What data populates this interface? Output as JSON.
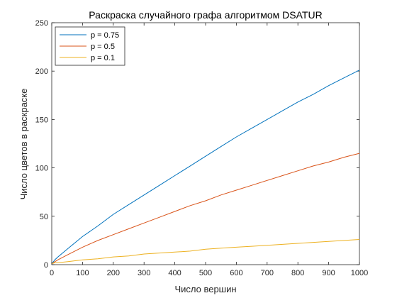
{
  "chart_data": {
    "type": "line",
    "title": "Раскраска случайного графа алгоритмом DSATUR",
    "xlabel": "Число вершин",
    "ylabel": "Число цветов в раскраске",
    "xlim": [
      0,
      1000
    ],
    "ylim": [
      0,
      250
    ],
    "xticks": [
      0,
      100,
      200,
      300,
      400,
      500,
      600,
      700,
      800,
      900,
      1000
    ],
    "yticks": [
      0,
      50,
      100,
      150,
      200,
      250
    ],
    "grid": false,
    "legend_position": "top-left",
    "x": [
      1,
      10,
      20,
      50,
      100,
      150,
      200,
      250,
      300,
      350,
      400,
      450,
      500,
      550,
      600,
      650,
      700,
      750,
      800,
      850,
      900,
      950,
      1000
    ],
    "series": [
      {
        "name": "p = 0.75",
        "color": "#0072BD",
        "values": [
          1,
          5,
          8,
          16,
          29,
          40,
          52,
          62,
          72,
          82,
          92,
          102,
          112,
          122,
          132,
          141,
          150,
          159,
          168,
          176,
          185,
          193,
          201
        ]
      },
      {
        "name": "p = 0.5",
        "color": "#D95319",
        "values": [
          1,
          3,
          5,
          10,
          18,
          25,
          31,
          37,
          43,
          49,
          55,
          61,
          66,
          72,
          77,
          82,
          87,
          92,
          97,
          102,
          106,
          111,
          115
        ]
      },
      {
        "name": "p = 0.1",
        "color": "#EDB120",
        "values": [
          1,
          2,
          2,
          3,
          5,
          6,
          8,
          9,
          11,
          12,
          13,
          14,
          16,
          17,
          18,
          19,
          20,
          21,
          22,
          23,
          24,
          25,
          26
        ]
      }
    ]
  }
}
